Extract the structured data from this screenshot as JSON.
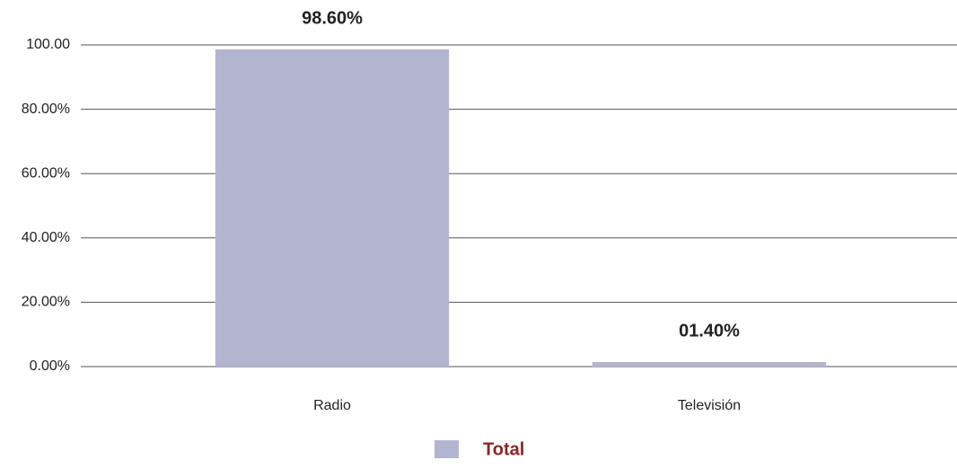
{
  "chart_data": {
    "type": "bar",
    "categories": [
      "Radio",
      "Televisión"
    ],
    "series": [
      {
        "name": "Total",
        "color": "#b3b5d0",
        "values": [
          98.6,
          1.4
        ],
        "value_labels": [
          "98.60%",
          "01.40%"
        ]
      }
    ],
    "ylim": [
      0,
      100
    ],
    "yticks": [
      {
        "value": 0,
        "label": "0.00%"
      },
      {
        "value": 20,
        "label": "20.00%"
      },
      {
        "value": 40,
        "label": "40.00%"
      },
      {
        "value": 60,
        "label": "60.00%"
      },
      {
        "value": 80,
        "label": "80.00%"
      },
      {
        "value": 100,
        "label": "100.00"
      }
    ],
    "grid": true,
    "legend": "bottom"
  }
}
